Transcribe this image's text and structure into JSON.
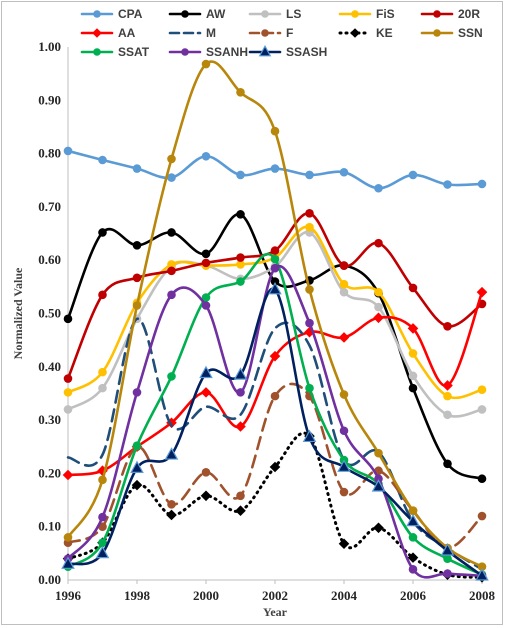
{
  "chart_data": {
    "type": "line",
    "title": "",
    "xlabel": "Year",
    "ylabel": "Normalized Value",
    "x": [
      1996,
      1997,
      1998,
      1999,
      2000,
      2001,
      2002,
      2003,
      2004,
      2005,
      2006,
      2007,
      2008
    ],
    "x_ticks": [
      "1996",
      "1998",
      "2000",
      "2002",
      "2004",
      "2006",
      "2008"
    ],
    "y_ticks": [
      "0.00",
      "0.10",
      "0.20",
      "0.30",
      "0.40",
      "0.50",
      "0.60",
      "0.70",
      "0.80",
      "0.90",
      "1.00"
    ],
    "xlim": [
      1996,
      2008
    ],
    "ylim": [
      0,
      1
    ],
    "grid": false,
    "legend_position": "top",
    "series": [
      {
        "name": "CPA",
        "color": "#5b9bd5",
        "dash": "solid",
        "marker": "circle",
        "values": [
          0.805,
          0.788,
          0.772,
          0.755,
          0.795,
          0.76,
          0.772,
          0.76,
          0.765,
          0.735,
          0.76,
          0.742,
          0.743
        ]
      },
      {
        "name": "AW",
        "color": "#000000",
        "dash": "solid",
        "marker": "circle",
        "values": [
          0.49,
          0.652,
          0.628,
          0.652,
          0.612,
          0.686,
          0.56,
          0.562,
          0.59,
          0.538,
          0.36,
          0.218,
          0.19
        ]
      },
      {
        "name": "LS",
        "color": "#c0c0c0",
        "dash": "solid",
        "marker": "circle",
        "values": [
          0.32,
          0.36,
          0.49,
          0.588,
          0.59,
          0.565,
          0.588,
          0.652,
          0.54,
          0.512,
          0.383,
          0.31,
          0.32
        ]
      },
      {
        "name": "FiS",
        "color": "#ffc000",
        "dash": "solid",
        "marker": "circle",
        "values": [
          0.352,
          0.39,
          0.52,
          0.592,
          0.59,
          0.592,
          0.605,
          0.662,
          0.555,
          0.54,
          0.425,
          0.345,
          0.357
        ]
      },
      {
        "name": "20R",
        "color": "#c00000",
        "dash": "solid",
        "marker": "circle",
        "values": [
          0.378,
          0.535,
          0.567,
          0.58,
          0.595,
          0.605,
          0.618,
          0.688,
          0.59,
          0.632,
          0.548,
          0.476,
          0.518
        ]
      },
      {
        "name": "AA",
        "color": "#ff0000",
        "dash": "solid",
        "marker": "diamond",
        "values": [
          0.197,
          0.205,
          0.25,
          0.295,
          0.352,
          0.288,
          0.42,
          0.465,
          0.455,
          0.492,
          0.472,
          0.365,
          0.54
        ]
      },
      {
        "name": "M",
        "color": "#1f4e79",
        "dash": "longdash",
        "marker": "none",
        "values": [
          0.23,
          0.235,
          0.49,
          0.29,
          0.325,
          0.31,
          0.472,
          0.44,
          0.225,
          0.24,
          0.11,
          0.06,
          0.02
        ]
      },
      {
        "name": "F",
        "color": "#a0522d",
        "dash": "longdash",
        "marker": "circle",
        "values": [
          0.07,
          0.1,
          0.25,
          0.142,
          0.202,
          0.158,
          0.345,
          0.345,
          0.165,
          0.205,
          0.13,
          0.06,
          0.12
        ]
      },
      {
        "name": "KE",
        "color": "#000000",
        "dash": "dotted",
        "marker": "diamond",
        "values": [
          0.04,
          0.07,
          0.178,
          0.122,
          0.158,
          0.13,
          0.212,
          0.27,
          0.068,
          0.098,
          0.042,
          0.01,
          0.005
        ]
      },
      {
        "name": "SSN",
        "color": "#b8860b",
        "dash": "solid",
        "marker": "circle",
        "values": [
          0.08,
          0.188,
          0.515,
          0.79,
          0.968,
          0.915,
          0.842,
          0.545,
          0.348,
          0.238,
          0.13,
          0.06,
          0.025
        ]
      },
      {
        "name": "SSAT",
        "color": "#00b050",
        "dash": "solid",
        "marker": "circle",
        "values": [
          0.025,
          0.07,
          0.252,
          0.382,
          0.53,
          0.56,
          0.602,
          0.36,
          0.225,
          0.18,
          0.08,
          0.04,
          0.01
        ]
      },
      {
        "name": "SSANH",
        "color": "#7030a0",
        "dash": "solid",
        "marker": "circle",
        "values": [
          0.04,
          0.118,
          0.352,
          0.535,
          0.515,
          0.352,
          0.585,
          0.482,
          0.28,
          0.19,
          0.02,
          0.012,
          0.008
        ]
      },
      {
        "name": "SSASH",
        "color": "#002060",
        "dash": "solid",
        "marker": "triangle",
        "values": [
          0.03,
          0.05,
          0.21,
          0.235,
          0.388,
          0.385,
          0.545,
          0.268,
          0.212,
          0.175,
          0.11,
          0.055,
          0.008
        ]
      }
    ]
  }
}
